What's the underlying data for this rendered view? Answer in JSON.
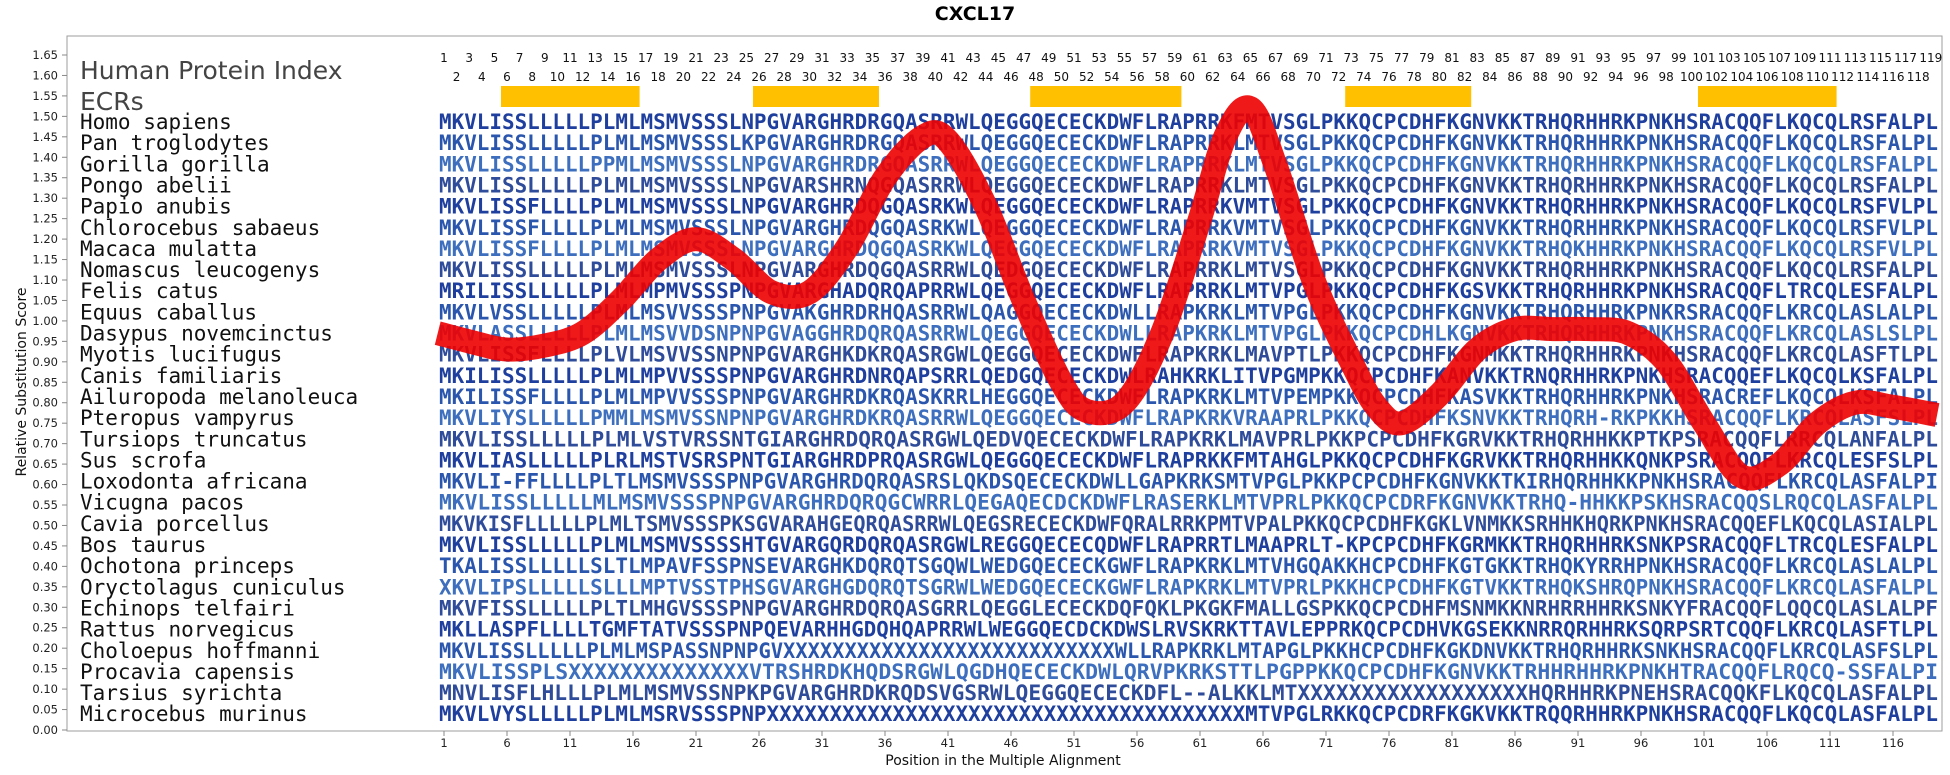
{
  "chart_data": {
    "type": "line",
    "title": "CXCL17",
    "xlabel": "Position in the Multiple Alignment",
    "ylabel": "Relative Substitution Score",
    "ylim": [
      0,
      1.65
    ],
    "xlim": [
      1,
      119
    ],
    "yticks": [
      "0.00",
      "0.05",
      "0.10",
      "0.15",
      "0.20",
      "0.25",
      "0.30",
      "0.35",
      "0.40",
      "0.45",
      "0.50",
      "0.55",
      "0.60",
      "0.65",
      "0.70",
      "0.75",
      "0.80",
      "0.85",
      "0.90",
      "0.95",
      "1.00",
      "1.05",
      "1.10",
      "1.15",
      "1.20",
      "1.25",
      "1.30",
      "1.35",
      "1.40",
      "1.45",
      "1.50",
      "1.55",
      "1.60",
      "1.65"
    ],
    "xticks": [
      "1",
      "6",
      "11",
      "16",
      "21",
      "26",
      "31",
      "36",
      "41",
      "46",
      "51",
      "56",
      "61",
      "66",
      "71",
      "76",
      "81",
      "86",
      "91",
      "96",
      "101",
      "106",
      "111",
      "116"
    ],
    "human_index_label": "Human Protein Index",
    "ecr_label": "ECRs",
    "ecr_color": "#ffc000",
    "curve_color": "#ee0000",
    "ecrs": [
      [
        6,
        16
      ],
      [
        26,
        35
      ],
      [
        48,
        59
      ],
      [
        73,
        82
      ],
      [
        101,
        111
      ]
    ],
    "series": [
      {
        "x": [
          0.5,
          3,
          6,
          9,
          12,
          15,
          18,
          21,
          24,
          27,
          30,
          33,
          36,
          39,
          41,
          44,
          47,
          50,
          52,
          55,
          58,
          61,
          63,
          65,
          67,
          70,
          73,
          75,
          77,
          80,
          83,
          86,
          89,
          92,
          95,
          98,
          101,
          104,
          107,
          110,
          113,
          116,
          119.5
        ],
        "values": [
          0.97,
          0.95,
          0.93,
          0.94,
          0.97,
          1.05,
          1.15,
          1.2,
          1.15,
          1.07,
          1.07,
          1.18,
          1.35,
          1.45,
          1.44,
          1.28,
          1.05,
          0.85,
          0.78,
          0.8,
          0.97,
          1.25,
          1.45,
          1.52,
          1.38,
          1.1,
          0.9,
          0.79,
          0.75,
          0.82,
          0.93,
          0.98,
          0.98,
          0.98,
          0.97,
          0.9,
          0.75,
          0.62,
          0.65,
          0.75,
          0.8,
          0.79,
          0.77
        ]
      }
    ],
    "human_index_row1": [
      "1",
      "3",
      "5",
      "7",
      "9",
      "11",
      "13",
      "15",
      "17",
      "19",
      "21",
      "23",
      "25",
      "27",
      "29",
      "31",
      "33",
      "35",
      "37",
      "39",
      "41",
      "43",
      "45",
      "47",
      "49",
      "51",
      "53",
      "55",
      "57",
      "59",
      "61",
      "63",
      "65",
      "67",
      "69",
      "71",
      "73",
      "75",
      "77",
      "79",
      "81",
      "83",
      "85",
      "87",
      "89",
      "91",
      "93",
      "95",
      "97",
      "99",
      "101",
      "103",
      "105",
      "107",
      "109",
      "111",
      "113",
      "115",
      "117",
      "119"
    ],
    "human_index_row2": [
      "2",
      "4",
      "6",
      "8",
      "10",
      "12",
      "14",
      "16",
      "18",
      "20",
      "22",
      "24",
      "26",
      "28",
      "30",
      "32",
      "34",
      "36",
      "38",
      "40",
      "42",
      "44",
      "46",
      "48",
      "50",
      "52",
      "54",
      "56",
      "58",
      "60",
      "62",
      "64",
      "66",
      "68",
      "70",
      "72",
      "74",
      "76",
      "78",
      "80",
      "82",
      "84",
      "86",
      "88",
      "90",
      "92",
      "94",
      "96",
      "98",
      "100",
      "102",
      "104",
      "106",
      "108",
      "110",
      "112",
      "114",
      "116",
      "118"
    ],
    "rows": [
      {
        "name": "Homo sapiens",
        "seq": "MKVLISSLLLLLPLMLMSMVSSSLNPGVARGHRDRGQASRRWLQEGGQECECKDWFLRAPRRKFMTVSGLPKKQCPCDHFKGNVKKTRHQRHHRKPNKHSRACQQFLKQCQLRSFALPL"
      },
      {
        "name": "Pan troglodytes",
        "seq": "MKVLISSLLLLLPLMLMSMVSSSLKPGVARGHRDRGQASRRWLQEGGQECECKDWFLRAPRRKLMTVSGLPKKQCPCDHFKGNVKKTRHQRHHRKPNKHSRACQQFLKQCQLRSFALPL"
      },
      {
        "name": "Gorilla gorilla",
        "seq": "MKVLISSLLLLLPPMLMSMVSSSLNPGVARGHRDRGQASRRWLQEGGQECECKDWFLRAPRRKLMTVSGLPKKQCPCDHFKGNVKKTRHQRHHRKPNKHSRACQQFLKQCQLRSFALPL"
      },
      {
        "name": "Pongo abelii",
        "seq": "MKVLISSLLLLLPLMLMSMVSSSLNPGVARSHRNQGQASRRWLQEGGQECECKDWFLRAPRRKLMTVSGLPKKQCPCDHFKGNVKKTRHQRHHRKPNKHSRACQQFLKQCQLRSFALPL"
      },
      {
        "name": "Papio anubis",
        "seq": "MKVLISSFLLLLPLMLMSMVSSSLNPGVARGHRDQGQASRKWLQEGGQECECKDWFLRAPRRKVMTVSGLPKKQCPCDHFKGNVKKTRHQRHHRKPNKHSRACQQFLKQCQLRSFVLPL"
      },
      {
        "name": "Chlorocebus sabaeus",
        "seq": "MKVLISSFLLLLPLMLMSMVSSSLNPGVARGHRDQGQASRKWLQEGGQECECKDWFLRAPRRKVMTVSGLPKKQCPCDHFKGNVKKTRHQRHHRKPNKHSRACQQFLKQCQLRSFVLPL"
      },
      {
        "name": "Macaca mulatta",
        "seq": "MKVLISSFLLLLPLMLMSMVSSSLNPGVARGHRDQGQASRKWLQEGGQECECKDWFLRAPRRKVMTVSGLPKKQCPCDHFKGNVKKTRHQKHHRKPNKHSRACQQFLKQCQLRSFVLPL"
      },
      {
        "name": "Nomascus leucogenys",
        "seq": "MKVLISSLLLLLPLMLMSMVSSSLNPGVARGHRDQGQASRRWLQEDGQECECKDWFLRAPRRKLMTVSGLPKKQCPCDHFKGNVKKTRHQRHHRKPNKHSRACQQFLKQCQLRSFALPL"
      },
      {
        "name": "Felis catus",
        "seq": "MRILISSLLLLLPLMLMPMVSSSPNPGVARGHADQRQAPRRWLQEGGQECECKDWFLRAPRRKLMTVPGLPKKQCPCDHFKGSVKKTRHQRHHRKPNKHSRACQQFLTRCQLESFALPL"
      },
      {
        "name": "Equus caballus",
        "seq": "MKVLVSSLLLLLPLMLMSVVSSSPNPGVAKGHRDRHQASRRWLQAGGQECECKDWLLRAPKRKLMTVPGLPKKQCPCDHFKGNVKKTRHQRHHRKPNKRSRACQQFLKRCQLASLALPL"
      },
      {
        "name": "Dasypus novemcinctus",
        "seq": "MKVLASSLLLLLPLMLMSVVDSNPNPGVAGGHRDQRQASRRWLQEGGQECECKDWLLRAPKRKLMTVPGLPKKQCPCDHLKGNVKKTRHQRHHRKPNKHSRACQQFLKRCQLASLSLPL"
      },
      {
        "name": "Myotis lucifugus",
        "seq": "MKVLISSFLLLLPLVLMSVVSSNPNPGVARGHKDKRQASRGWLQEGGQECECKDWFLRAPKRKLMAVPTLPKKQCPCDHFKGNMKKTRHQRHHRKPNKHSRACQQFLKRCQLASFTLPL"
      },
      {
        "name": "Canis familiaris",
        "seq": "MKILISSLLLLLPLMLMPVVSSSPNPGVARGHRDNRQAPSRRLQEDGQECECKDWLRAHKRKLITVPGMPKKQCPCDHFKANVKKTRNQRHHRKPNKHSRACQQEFLKQCQLKSFALPL"
      },
      {
        "name": "Ailuropoda melanoleuca",
        "seq": "MKILISSFLLLLPLMLMPVVSSSPNPGVARGHRDKRQASKRRLHEGGQECECKDWFLRAPKRKLMTVPEMPKKQCPCDHFKASVKKTRHQRHHRKPNKHSRACREFLKQCQLKSFALPL"
      },
      {
        "name": "Pteropus vampyrus",
        "seq": "MKVLIYSLLLLLPMMLMSMVSSNPNPGVARGHRDKRQASRRWLQEGGQECECKDWFLRAPKRKVRAAPRLPKKQCPCDHFKSNVKKTRHQRH-RKPKKHSRACQQFLKRCQLASFSLPL"
      },
      {
        "name": "Tursiops truncatus",
        "seq": "MKVLISSLLLLLPLMLVSTVRSSNTGIARGHRDQRQASRGWLQEDVQECECKDWFLRAPKRKLMAVPRLPKKPCPCDHFKGRVKKTRHQRHHKKPTKPSRACQQFLRRCQLANFALPL"
      },
      {
        "name": "Sus scrofa",
        "seq": "MKVLIASLLLLLPLRLMSTVSRSPNTGIARGHRDPRQASRGWLQEGGQECECKDWFLRAPRKKFMTAHGLPKKQCPCDHFKGRVKKTRHQRHHKKQNKPSRACQQFLKRCQLESFSLPL"
      },
      {
        "name": "Loxodonta africana",
        "seq": "MKVLI-FFLLLLPLTLMSMVSSSPNPGVARGHRDQRQASRSLQKDSQECECKDWLLGAPKRKSMTVPGLPKKPCPCDHFKGNVKKTKIRHQRHHKKPNKHSRACQQFLKRCQLASFALPI"
      },
      {
        "name": "Vicugna pacos",
        "seq": "MKVLISSLLLLLMLMSMVSSSPNPGVARGHRDQRQGCWRRLQEGAQECDCKDWFLRASERKLMTVPRLPKKQCPCDRFKGNVKKTRHQ-HHKKPSKHSRACQQSLRQCQLASFALPL"
      },
      {
        "name": "Cavia porcellus",
        "seq": "MKVKISFLLLLLPLMLTSMVSSSPKSGVARAHGEQRQASRRWLQEGSRECECKDWFQRALRRKPMTVPALPKKQCPCDHFKGKLVNMKKSRHHKHQRKPNKHSRACQQEFLKQCQLASIALPL"
      },
      {
        "name": "Bos taurus",
        "seq": "MKVLISSLLLLLPLMLMSMVSSSSHTGVARGQRDQRQASRGWLREGGQECECQDWFLRAPRRTLMAAPRLT-KPCPCDHFKGRMKKTRHQRHHRKSNKPSRACQQFLTRCQLESFALPL"
      },
      {
        "name": "Ochotona princeps",
        "seq": "TKALISSLLLLLSLTLMPAVFSSPNSEVARGHKDQRQTSGQWLWEDGQECECKGWFLRAPKRKLMTVHGQAKKHCPCDHFKGTGKKTRHQKYRRHPNKHSRACQQFLKRCQLASLALPL"
      },
      {
        "name": "Oryctolagus cuniculus",
        "seq": "XKVLIPSLLLLLSLLLMPTVSSTPHSGVARGHGDQRQTSGRWLWEDGQECECKGWFLRAPKRKLMTVPRLPKKHCPCDHFKGTVKKTRHQKSHRQPNKHSRACQQFLKRCQLASFALPL"
      },
      {
        "name": "Echinops telfairi",
        "seq": "MKVFISSLLLLLPLTLMHGVSSSPNPGVARGHRDQRQASGRRLQEGGLECECKDQFQKLPKGKFMALLGSPKKQCPCDHFMSNMKKNRHRRHHRKSNKYFRACQQFLQQCQLASLALPF"
      },
      {
        "name": "Rattus norvegicus",
        "seq": "MKLLASPFLLLLTGMFTATVSSSPNPQEVARHHGDQHQAPRRWLWEGGQECDCKDWSLRVSKRKTTAVLEPPRKQCPCDHVKGSEKKNRRQRHHRKSQRPSRTCQQFLKRCQLASFTLPL"
      },
      {
        "name": "Choloepus hoffmanni",
        "seq": "MKVLISSLLLLLPLMLMSPASSNPNPGVXXXXXXXXXXXXXXXXXXXXXXXXXXXWLLRAPKRKLMTAPGLPKKHCPCDHFKGKDNVKKTRHQRHHRKSNKHSRACQQFLKRCQLASFSLPL"
      },
      {
        "name": "Procavia capensis",
        "seq": "MKVLISSPLSXXXXXXXXXXXXXXVTRSHRDKHQDSRGWLQGDHQECECKDWLQRVPKRKSTTLPGPPKKQCPCDHFKGNVKKTRHHRHHRKPNKHTRACQQFLRQCQ-SSFALPI"
      },
      {
        "name": "Tarsius syrichta",
        "seq": "MNVLISFLHLLLPLMLMSMVSSNPKPGVARGHRDKRQDSVGSRWLQEGGQECECKDFL--ALKKLMTXXXXXXXXXXXXXXXXXXHQRHHRKPNEHSRACQQKFLKQCQLASFALPL"
      },
      {
        "name": "Microcebus murinus",
        "seq": "MKVLVYSLLLLLPLMLMSRVSSSPNPXXXXXXXXXXXXXXXXXXXXXXXXXXXXXXXXXXXXXXMTVPGLRKKQCPCDRFKGKVKKTRQQRHHRKPNKHSRACQQFLKQCQLASFALPL"
      }
    ]
  }
}
